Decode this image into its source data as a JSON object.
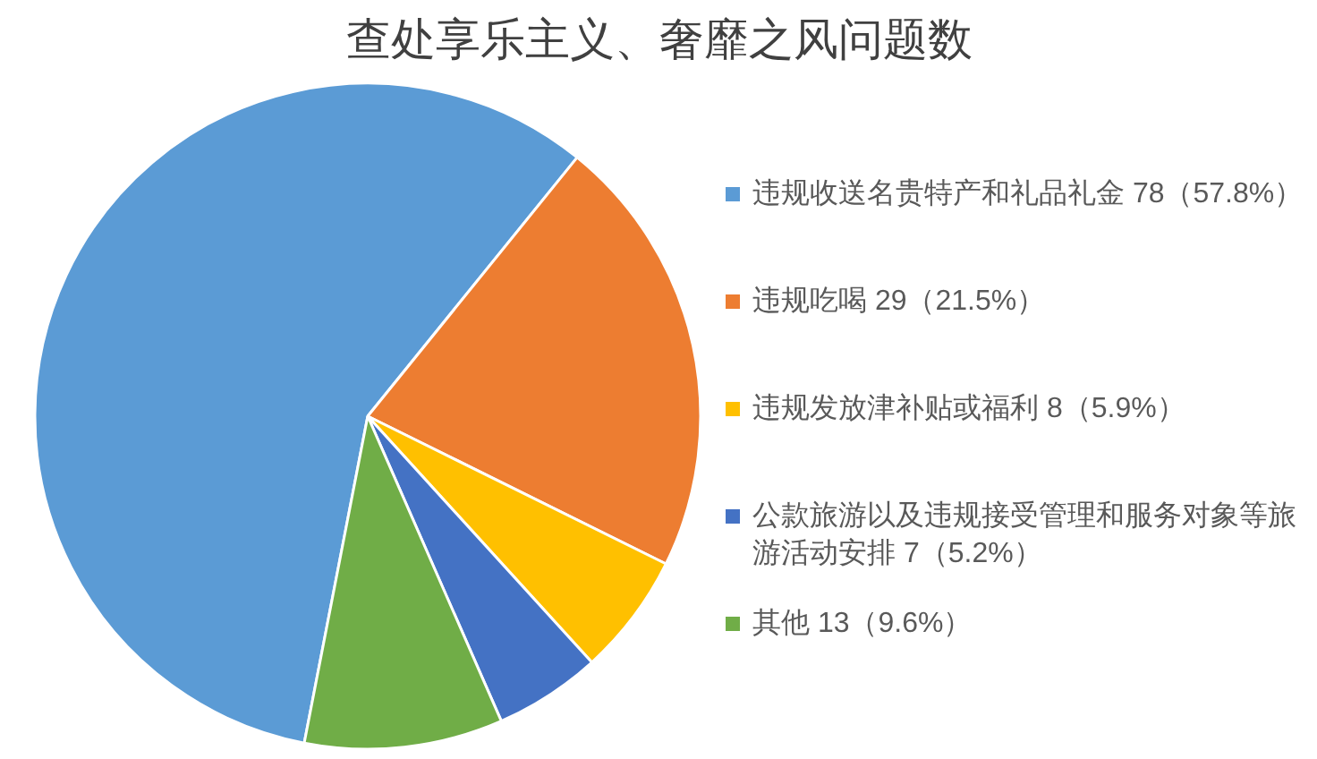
{
  "chart_data": {
    "type": "pie",
    "title": "查处享乐主义、奢靡之风问题数",
    "categories": [
      "违规收送名贵特产和礼品礼金 78（57.8%）",
      "违规吃喝 29（21.5%）",
      "违规发放津补贴或福利 8（5.9%）",
      "公款旅游以及违规接受管理和服务对象等旅游活动安排 7（5.2%）",
      "其他 13（9.6%）"
    ],
    "values": [
      78,
      29,
      8,
      7,
      13
    ],
    "colors": [
      "#5b9bd5",
      "#ed7d31",
      "#ffc000",
      "#4472c4",
      "#70ad47"
    ],
    "legend": "right"
  }
}
